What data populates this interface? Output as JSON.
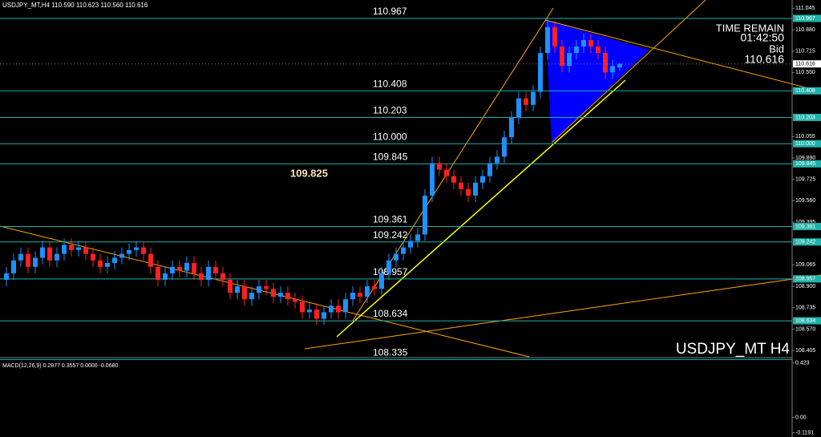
{
  "chart_data": {
    "type": "candlestick",
    "title": "USDJPY_MT,H4  110.590 110.623 110.560 110.616",
    "symbol_label": "USDJPY_MT H4",
    "time_remain_label": "TIME REMAIN",
    "time_remain": "01:42:50",
    "bid_label": "Bid",
    "bid": {
      "value": 110.616,
      "label": "110.616"
    },
    "annotation": "109.825",
    "up_color": "#1e90ff",
    "down_color": "#ff2020",
    "level_color": "#20b2aa",
    "ylim": [
      108.356,
      111.109
    ],
    "yticks": [
      {
        "value": 111.045,
        "label": "111.045"
      },
      {
        "value": 110.88,
        "label": "110.880"
      },
      {
        "value": 110.715,
        "label": "110.715"
      },
      {
        "value": 110.55,
        "label": "110.550"
      },
      {
        "value": 110.055,
        "label": "110.055"
      },
      {
        "value": 109.89,
        "label": "109.890"
      },
      {
        "value": 109.725,
        "label": "109.725"
      },
      {
        "value": 109.56,
        "label": "109.560"
      },
      {
        "value": 109.395,
        "label": "109.395"
      },
      {
        "value": 109.065,
        "label": "109.065"
      },
      {
        "value": 108.9,
        "label": "108.900"
      },
      {
        "value": 108.735,
        "label": "108.735"
      },
      {
        "value": 108.57,
        "label": "108.570"
      },
      {
        "value": 108.405,
        "label": "108.405"
      }
    ],
    "levels": [
      {
        "value": 110.967,
        "label": "110.967"
      },
      {
        "value": 110.408,
        "label": "110.408"
      },
      {
        "value": 110.203,
        "label": "110.203"
      },
      {
        "value": 110.0,
        "label": "110.000"
      },
      {
        "value": 109.845,
        "label": "109.845"
      },
      {
        "value": 109.361,
        "label": "109.361"
      },
      {
        "value": 109.242,
        "label": "109.242"
      },
      {
        "value": 108.957,
        "label": "108.957"
      },
      {
        "value": 108.634,
        "label": "108.634"
      },
      {
        "value": 108.335,
        "label": "108.335"
      }
    ],
    "open": [
      108.95,
      109.0,
      109.1,
      109.15,
      109.05,
      109.12,
      109.2,
      109.1,
      109.15,
      109.22,
      109.18,
      109.2,
      109.15,
      109.1,
      109.05,
      109.08,
      109.12,
      109.15,
      109.18,
      109.2,
      109.15,
      109.05,
      108.95,
      109.0,
      109.05,
      109.02,
      109.08,
      109.0,
      108.95,
      109.05,
      109.0,
      108.95,
      108.85,
      108.9,
      108.8,
      108.85,
      108.9,
      108.88,
      108.82,
      108.85,
      108.8,
      108.78,
      108.7,
      108.72,
      108.65,
      108.7,
      108.75,
      108.7,
      108.8,
      108.85,
      108.82,
      108.9,
      108.88,
      109.0,
      109.1,
      109.15,
      109.2,
      109.25,
      109.3,
      109.6,
      109.85,
      109.8,
      109.75,
      109.7,
      109.65,
      109.6,
      109.7,
      109.75,
      109.85,
      109.9,
      110.05,
      110.2,
      110.35,
      110.3,
      110.4,
      110.7,
      110.9,
      110.75,
      110.6,
      110.7,
      110.75,
      110.8,
      110.75,
      110.7,
      110.55,
      110.59
    ],
    "high": [
      109.05,
      109.15,
      109.2,
      109.2,
      109.17,
      109.25,
      109.25,
      109.2,
      109.27,
      109.27,
      109.25,
      109.25,
      109.2,
      109.15,
      109.13,
      109.17,
      109.2,
      109.23,
      109.25,
      109.25,
      109.2,
      109.1,
      109.05,
      109.1,
      109.1,
      109.13,
      109.13,
      109.05,
      109.1,
      109.1,
      109.05,
      109.0,
      108.95,
      108.95,
      108.9,
      108.95,
      108.95,
      108.93,
      108.9,
      108.9,
      108.85,
      108.83,
      108.77,
      108.77,
      108.75,
      108.8,
      108.8,
      108.85,
      108.9,
      108.9,
      108.95,
      108.95,
      109.05,
      109.15,
      109.2,
      109.25,
      109.3,
      109.35,
      109.65,
      109.9,
      109.9,
      109.85,
      109.8,
      109.75,
      109.7,
      109.75,
      109.8,
      109.9,
      109.95,
      110.1,
      110.25,
      110.4,
      110.4,
      110.45,
      110.75,
      110.967,
      110.95,
      110.8,
      110.75,
      110.8,
      110.85,
      110.85,
      110.8,
      110.75,
      110.65,
      110.623
    ],
    "low": [
      108.9,
      108.95,
      109.05,
      109.0,
      109.0,
      109.07,
      109.05,
      109.05,
      109.1,
      109.13,
      109.13,
      109.1,
      109.05,
      109.0,
      109.0,
      109.03,
      109.07,
      109.1,
      109.13,
      109.1,
      109.0,
      108.9,
      108.9,
      108.95,
      108.97,
      108.97,
      108.95,
      108.9,
      108.9,
      108.95,
      108.9,
      108.8,
      108.8,
      108.75,
      108.75,
      108.8,
      108.83,
      108.77,
      108.77,
      108.75,
      108.73,
      108.65,
      108.65,
      108.6,
      108.6,
      108.65,
      108.65,
      108.65,
      108.75,
      108.77,
      108.77,
      108.83,
      108.83,
      108.95,
      109.05,
      109.1,
      109.15,
      109.2,
      109.25,
      109.55,
      109.75,
      109.7,
      109.65,
      109.6,
      109.55,
      109.55,
      109.65,
      109.7,
      109.8,
      109.85,
      110.0,
      110.15,
      110.25,
      110.25,
      110.35,
      110.65,
      110.7,
      110.55,
      110.55,
      110.65,
      110.7,
      110.7,
      110.65,
      110.5,
      110.5,
      110.56
    ],
    "close": [
      109.0,
      109.1,
      109.15,
      109.05,
      109.12,
      109.2,
      109.1,
      109.15,
      109.22,
      109.18,
      109.2,
      109.15,
      109.1,
      109.05,
      109.08,
      109.12,
      109.15,
      109.18,
      109.2,
      109.15,
      109.05,
      108.95,
      109.0,
      109.05,
      109.02,
      109.08,
      109.0,
      108.95,
      109.05,
      109.0,
      108.95,
      108.85,
      108.9,
      108.8,
      108.85,
      108.9,
      108.88,
      108.82,
      108.85,
      108.8,
      108.78,
      108.7,
      108.72,
      108.65,
      108.7,
      108.75,
      108.7,
      108.8,
      108.85,
      108.82,
      108.9,
      108.88,
      109.0,
      109.1,
      109.15,
      109.2,
      109.25,
      109.3,
      109.6,
      109.85,
      109.8,
      109.75,
      109.7,
      109.65,
      109.6,
      109.7,
      109.75,
      109.85,
      109.9,
      110.05,
      110.2,
      110.35,
      110.3,
      110.4,
      110.7,
      110.9,
      110.75,
      110.6,
      110.7,
      110.75,
      110.8,
      110.75,
      110.7,
      110.55,
      110.6,
      110.616
    ],
    "macd": {
      "title": "MACD(12,26,9) 0.2877 0.3557 0.0000 -0.0680",
      "ylim": [
        -0.14,
        0.44
      ],
      "yticks": [
        {
          "value": 0.423,
          "label": "0.423"
        },
        {
          "value": 0.0,
          "label": "0.00"
        },
        {
          "value": -0.1191,
          "label": "-0.1191"
        }
      ]
    }
  }
}
